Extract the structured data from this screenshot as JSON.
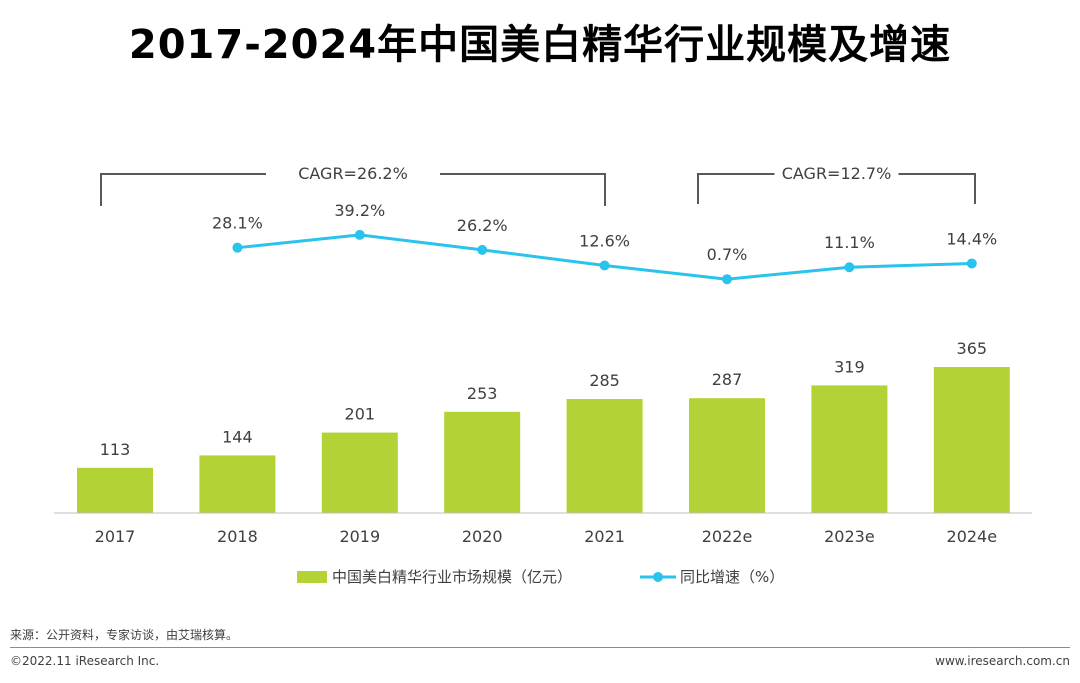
{
  "chart_data": {
    "type": "bar",
    "title": "2017-2024年中国美白精华行业规模及增速",
    "categories": [
      "2017",
      "2018",
      "2019",
      "2020",
      "2021",
      "2022e",
      "2023e",
      "2024e"
    ],
    "series": [
      {
        "name": "中国美白精华行业市场规模（亿元）",
        "type": "bar",
        "color": "#b2d235",
        "values": [
          113,
          144,
          201,
          253,
          285,
          287,
          319,
          365
        ]
      },
      {
        "name": "同比增速（%）",
        "type": "line",
        "color": "#29c3ec",
        "values": [
          null,
          28.1,
          39.2,
          26.2,
          12.6,
          0.7,
          11.1,
          14.4
        ],
        "labels": [
          null,
          "28.1%",
          "39.2%",
          "26.2%",
          "12.6%",
          "0.7%",
          "11.1%",
          "14.4%"
        ]
      }
    ],
    "annotations": [
      {
        "text": "CAGR=26.2%",
        "from": "2017",
        "to": "2021"
      },
      {
        "text": "CAGR=12.7%",
        "from": "2022e",
        "to": "2024e"
      }
    ],
    "bar_ylim": [
      0,
      380
    ],
    "line_ylim": [
      -40,
      40
    ],
    "legend_position": "bottom-center"
  },
  "source": "来源：公开资料，专家访谈，由艾瑞核算。",
  "copyright": "©2022.11 iResearch Inc.",
  "website": "www.iresearch.com.cn"
}
